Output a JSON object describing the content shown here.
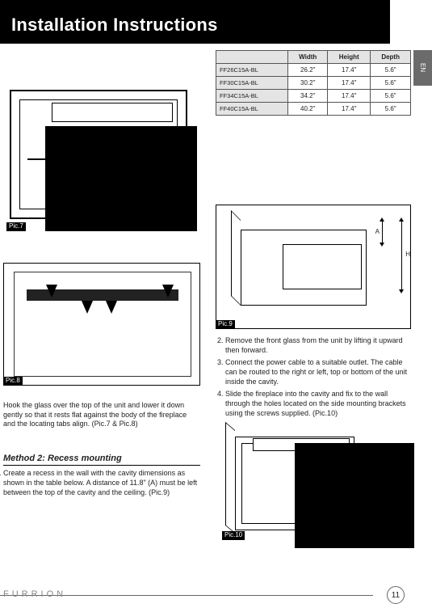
{
  "side_tab": "EN",
  "header": {
    "title": "Installation Instructions"
  },
  "figs": {
    "f7": "Pic.7",
    "f8": "Pic.8",
    "f9": "Pic.9",
    "f10": "Pic.10"
  },
  "left_texts": {
    "p1": "Hook the glass over the top of the unit and lower it down gently so that it rests flat against the body of the fireplace and the locating tabs align. (Pic.7 & Pic.8)",
    "method_head": "Method 2: Recess mounting"
  },
  "method2_steps": [
    "Create a recess in the wall with the cavity dimensions as shown in the table below. A distance of 11.8\" (A) must be left between the top of the cavity and the ceiling. (Pic.9)"
  ],
  "spec_table": {
    "head": [
      "",
      "Width",
      "Height",
      "Depth"
    ],
    "rows": [
      [
        "FF26C15A-BL",
        "26.2\"",
        "17.4\"",
        "5.6\""
      ],
      [
        "FF30C15A-BL",
        "30.2\"",
        "17.4\"",
        "5.6\""
      ],
      [
        "FF34C15A-BL",
        "34.2\"",
        "17.4\"",
        "5.6\""
      ],
      [
        "FF40C15A-BL",
        "40.2\"",
        "17.4\"",
        "5.6\""
      ]
    ]
  },
  "fig9_dims": {
    "a": "A",
    "h": "H"
  },
  "right_list": {
    "items": [
      "Remove the front glass from the unit by lifting it upward then forward.",
      "Connect the power cable to a suitable outlet. The cable can be routed to the right or left, top or bottom of the unit inside the cavity.",
      "Slide the fireplace into the cavity and fix to the wall through the holes located on the side mounting brackets using the screws supplied. (Pic.10)"
    ]
  },
  "footer": {
    "brand": "FURRION",
    "page": "11"
  }
}
